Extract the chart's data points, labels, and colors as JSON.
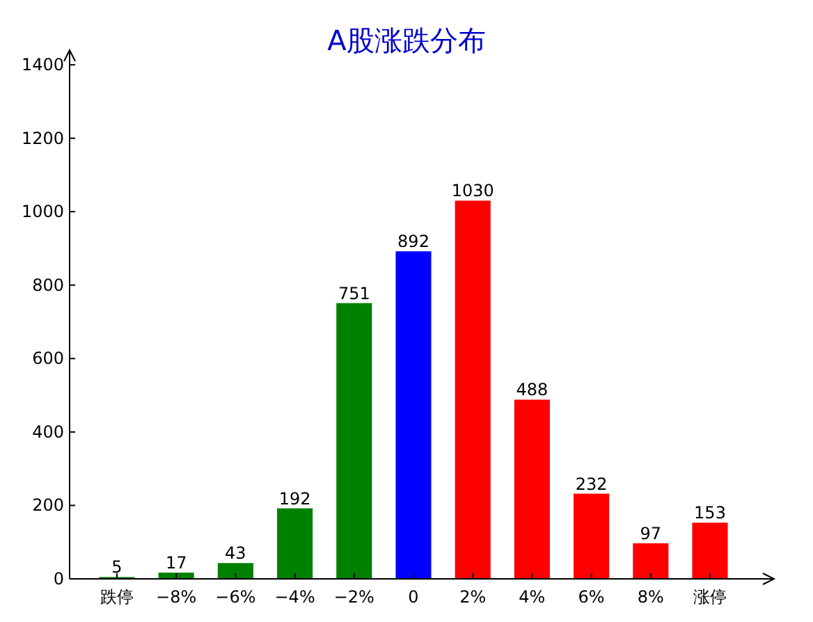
{
  "chart_data": {
    "type": "bar",
    "title": "A股涨跌分布",
    "categories": [
      "跌停",
      "−8%",
      "−6%",
      "−4%",
      "−2%",
      "0",
      "2%",
      "4%",
      "6%",
      "8%",
      "涨停"
    ],
    "values": [
      5,
      17,
      43,
      192,
      751,
      892,
      1030,
      488,
      232,
      97,
      153
    ],
    "colors": [
      "#008000",
      "#008000",
      "#008000",
      "#008000",
      "#008000",
      "#0000ff",
      "#ff0000",
      "#ff0000",
      "#ff0000",
      "#ff0000",
      "#ff0000"
    ],
    "ylim": [
      0,
      1440
    ],
    "yticks": [
      0,
      200,
      400,
      600,
      800,
      1000,
      1200,
      1400
    ],
    "data_labels": true,
    "grid": false
  }
}
